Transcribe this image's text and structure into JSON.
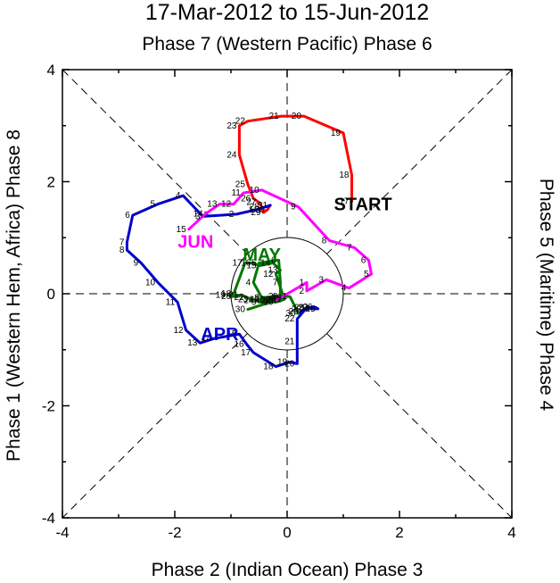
{
  "chart_data": {
    "type": "line",
    "title": "17-Mar-2012 to 15-Jun-2012",
    "subtitle": "Phase 7 (Western Pacific) Phase 6",
    "xlabel": "Phase 2 (Indian Ocean) Phase 3",
    "ylabel_left": "Phase 1 (Western Hem, Africa) Phase 8",
    "ylabel_right": "Phase 5 (Maritime) Phase 4",
    "xlim": [
      -4,
      4
    ],
    "ylim": [
      -4,
      4
    ],
    "xticks": [
      "-4",
      "-2",
      "0",
      "2",
      "4"
    ],
    "yticks": [
      "-4",
      "-2",
      "0",
      "2",
      "4"
    ],
    "unit_circle_radius": 1,
    "annotations": [
      {
        "text": "START",
        "x": 1.35,
        "y": 1.6,
        "color": "#000000"
      },
      {
        "text": "APR",
        "x": -1.2,
        "y": -0.72,
        "color": "#0000cc"
      },
      {
        "text": "MAY",
        "x": -0.45,
        "y": 0.7,
        "color": "#007700"
      },
      {
        "text": "JUN",
        "x": -1.63,
        "y": 0.93,
        "color": "#ff00ff"
      }
    ],
    "series": [
      {
        "color": "#ff0000",
        "points": [
          {
            "x": 1.15,
            "y": 1.65,
            "label": "17"
          },
          {
            "x": 1.15,
            "y": 2.12,
            "label": "18"
          },
          {
            "x": 1.0,
            "y": 2.87,
            "label": "19"
          },
          {
            "x": 0.3,
            "y": 3.17,
            "label": "20"
          },
          {
            "x": -0.1,
            "y": 3.17,
            "label": "21"
          },
          {
            "x": -0.7,
            "y": 3.08,
            "label": "22"
          },
          {
            "x": -0.85,
            "y": 3.0,
            "label": "23"
          },
          {
            "x": -0.85,
            "y": 2.48,
            "label": "24"
          },
          {
            "x": -0.7,
            "y": 1.95,
            "label": "25"
          },
          {
            "x": -0.6,
            "y": 1.7,
            "label": "26"
          },
          {
            "x": -0.5,
            "y": 1.63,
            "label": "27"
          },
          {
            "x": -0.45,
            "y": 1.55,
            "label": "28"
          },
          {
            "x": -0.42,
            "y": 1.45,
            "label": "29"
          },
          {
            "x": -0.35,
            "y": 1.5,
            "label": "30"
          },
          {
            "x": -0.3,
            "y": 1.58,
            "label": "31"
          }
        ]
      },
      {
        "color": "#0000cc",
        "points": [
          {
            "x": -0.3,
            "y": 1.58,
            "label": ""
          },
          {
            "x": -0.55,
            "y": 1.5,
            "label": "1"
          },
          {
            "x": -0.9,
            "y": 1.42,
            "label": "2"
          },
          {
            "x": -1.5,
            "y": 1.38,
            "label": "3"
          },
          {
            "x": -1.85,
            "y": 1.75,
            "label": "4"
          },
          {
            "x": -2.3,
            "y": 1.6,
            "label": "5"
          },
          {
            "x": -2.75,
            "y": 1.4,
            "label": "6"
          },
          {
            "x": -2.85,
            "y": 0.92,
            "label": "7"
          },
          {
            "x": -2.85,
            "y": 0.78,
            "label": "8"
          },
          {
            "x": -2.6,
            "y": 0.55,
            "label": "9"
          },
          {
            "x": -2.3,
            "y": 0.2,
            "label": "10"
          },
          {
            "x": -1.95,
            "y": -0.15,
            "label": "11"
          },
          {
            "x": -1.8,
            "y": -0.65,
            "label": "12"
          },
          {
            "x": -1.55,
            "y": -0.88,
            "label": "13"
          },
          {
            "x": -1.3,
            "y": -0.8,
            "label": "14"
          },
          {
            "x": -0.85,
            "y": -0.72,
            "label": "15"
          },
          {
            "x": -0.72,
            "y": -0.9,
            "label": "16"
          },
          {
            "x": -0.6,
            "y": -1.05,
            "label": "17"
          },
          {
            "x": -0.2,
            "y": -1.3,
            "label": "18"
          },
          {
            "x": 0.05,
            "y": -1.22,
            "label": "19"
          },
          {
            "x": 0.18,
            "y": -1.25,
            "label": "20"
          },
          {
            "x": 0.18,
            "y": -0.85,
            "label": "21"
          },
          {
            "x": 0.18,
            "y": -0.45,
            "label": "22"
          },
          {
            "x": 0.35,
            "y": -0.25,
            "label": "23"
          },
          {
            "x": 0.45,
            "y": -0.27,
            "label": "24"
          },
          {
            "x": 0.55,
            "y": -0.27,
            "label": "25"
          },
          {
            "x": 0.5,
            "y": -0.24,
            "label": "26"
          },
          {
            "x": 0.42,
            "y": -0.25,
            "label": "27"
          },
          {
            "x": 0.3,
            "y": -0.28,
            "label": "28"
          },
          {
            "x": 0.25,
            "y": -0.32,
            "label": "29"
          },
          {
            "x": 0.2,
            "y": -0.35,
            "label": "30"
          }
        ]
      },
      {
        "color": "#007700",
        "points": [
          {
            "x": 0.2,
            "y": -0.35,
            "label": ""
          },
          {
            "x": 0.05,
            "y": -0.05,
            "label": "1"
          },
          {
            "x": -0.2,
            "y": -0.05,
            "label": "2"
          },
          {
            "x": -0.45,
            "y": -0.07,
            "label": "3"
          },
          {
            "x": -0.6,
            "y": 0.2,
            "label": "4"
          },
          {
            "x": -0.5,
            "y": 0.55,
            "label": "5"
          },
          {
            "x": -0.15,
            "y": 0.6,
            "label": "6"
          },
          {
            "x": -0.12,
            "y": 0.2,
            "label": "7"
          },
          {
            "x": -0.12,
            "y": -0.05,
            "label": "8"
          },
          {
            "x": -0.5,
            "y": -0.15,
            "label": "9"
          },
          {
            "x": -0.2,
            "y": -0.15,
            "label": "10"
          },
          {
            "x": -0.05,
            "y": -0.1,
            "label": "11"
          },
          {
            "x": -0.2,
            "y": 0.35,
            "label": "12"
          },
          {
            "x": -0.12,
            "y": 0.42,
            "label": "13"
          },
          {
            "x": -0.25,
            "y": 0.55,
            "label": "14"
          },
          {
            "x": -0.5,
            "y": 0.5,
            "label": "15"
          },
          {
            "x": -0.6,
            "y": 0.55,
            "label": "16"
          },
          {
            "x": -0.75,
            "y": 0.55,
            "label": "17"
          },
          {
            "x": -0.95,
            "y": 0.0,
            "label": "18"
          },
          {
            "x": -1.05,
            "y": -0.02,
            "label": "19"
          },
          {
            "x": -0.95,
            "y": -0.05,
            "label": "20"
          },
          {
            "x": -0.82,
            "y": -0.02,
            "label": "21"
          },
          {
            "x": -0.72,
            "y": -0.06,
            "label": "22"
          },
          {
            "x": -0.65,
            "y": -0.1,
            "label": "23"
          },
          {
            "x": -0.55,
            "y": -0.12,
            "label": "24"
          },
          {
            "x": -0.45,
            "y": -0.1,
            "label": "25"
          },
          {
            "x": -0.35,
            "y": -0.1,
            "label": "26"
          },
          {
            "x": -0.25,
            "y": -0.12,
            "label": "27"
          },
          {
            "x": -0.15,
            "y": -0.1,
            "label": "28"
          },
          {
            "x": -0.05,
            "y": -0.07,
            "label": "29"
          },
          {
            "x": -0.7,
            "y": -0.28,
            "label": "30"
          },
          {
            "x": -0.2,
            "y": -0.12,
            "label": "31"
          }
        ]
      },
      {
        "color": "#ff00ff",
        "points": [
          {
            "x": -0.2,
            "y": -0.12,
            "label": ""
          },
          {
            "x": 0.35,
            "y": 0.2,
            "label": "1"
          },
          {
            "x": 0.35,
            "y": 0.05,
            "label": "2"
          },
          {
            "x": 0.7,
            "y": 0.25,
            "label": "3"
          },
          {
            "x": 1.1,
            "y": 0.1,
            "label": "4"
          },
          {
            "x": 1.5,
            "y": 0.35,
            "label": "5"
          },
          {
            "x": 1.45,
            "y": 0.6,
            "label": "6"
          },
          {
            "x": 1.2,
            "y": 0.82,
            "label": "7"
          },
          {
            "x": 0.75,
            "y": 0.95,
            "label": "8"
          },
          {
            "x": 0.2,
            "y": 1.55,
            "label": "9"
          },
          {
            "x": -0.45,
            "y": 1.85,
            "label": "10"
          },
          {
            "x": -0.78,
            "y": 1.8,
            "label": "11"
          },
          {
            "x": -0.95,
            "y": 1.6,
            "label": "12"
          },
          {
            "x": -1.2,
            "y": 1.6,
            "label": "13"
          },
          {
            "x": -1.45,
            "y": 1.43,
            "label": "14"
          },
          {
            "x": -1.75,
            "y": 1.15,
            "label": "15"
          }
        ]
      }
    ]
  }
}
